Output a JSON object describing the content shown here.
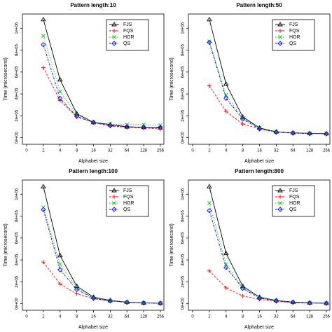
{
  "chart_data": [
    {
      "type": "line",
      "title": "Pattern length:10",
      "x_label": "Alphabet size",
      "y_label": "Time (microsecond)",
      "categories": [
        "0",
        "2",
        "4",
        "8",
        "16",
        "32",
        "64",
        "128",
        "256"
      ],
      "ylim": [
        -60000,
        1130000
      ],
      "yticks": [
        {
          "value": 0,
          "label": "0e+00"
        },
        {
          "value": 200000,
          "label": "2e+05"
        },
        {
          "value": 400000,
          "label": "4e+05"
        },
        {
          "value": 600000,
          "label": "6e+05"
        },
        {
          "value": 800000,
          "label": "8e+05"
        },
        {
          "value": 1000000,
          "label": "1e+06"
        }
      ],
      "series": [
        {
          "name": "FJS",
          "color": "#000000",
          "values": [
            null,
            1080000,
            530000,
            220000,
            140000,
            120000,
            100000,
            95000,
            90000
          ]
        },
        {
          "name": "FQS",
          "color": "#ff0000",
          "values": [
            null,
            640000,
            340000,
            190000,
            140000,
            105000,
            95000,
            90000,
            80000
          ]
        },
        {
          "name": "HOR",
          "color": "#00cd00",
          "values": [
            null,
            930000,
            420000,
            210000,
            140000,
            125000,
            120000,
            120000,
            115000
          ]
        },
        {
          "name": "QS",
          "color": "#0000ff",
          "values": [
            null,
            850000,
            360000,
            195000,
            140000,
            110000,
            100000,
            95000,
            95000
          ]
        }
      ]
    },
    {
      "type": "line",
      "title": "Pattern length:50",
      "x_label": "Alphabet size",
      "y_label": "Time (microsecond)",
      "categories": [
        "0",
        "2",
        "4",
        "8",
        "16",
        "32",
        "64",
        "128",
        "256"
      ],
      "ylim": [
        -60000,
        1130000
      ],
      "yticks": [
        {
          "value": 0,
          "label": "0e+00"
        },
        {
          "value": 200000,
          "label": "2e+05"
        },
        {
          "value": 400000,
          "label": "4e+05"
        },
        {
          "value": 600000,
          "label": "6e+05"
        },
        {
          "value": 800000,
          "label": "8e+05"
        },
        {
          "value": 1000000,
          "label": "1e+06"
        }
      ],
      "series": [
        {
          "name": "FJS",
          "color": "#000000",
          "values": [
            null,
            1080000,
            490000,
            190000,
            90000,
            55000,
            45000,
            40000,
            38000
          ]
        },
        {
          "name": "FQS",
          "color": "#ff0000",
          "values": [
            null,
            475000,
            240000,
            125000,
            80000,
            55000,
            45000,
            40000,
            38000
          ]
        },
        {
          "name": "HOR",
          "color": "#00cd00",
          "values": [
            null,
            880000,
            390000,
            175000,
            90000,
            55000,
            45000,
            40000,
            38000
          ]
        },
        {
          "name": "QS",
          "color": "#0000ff",
          "values": [
            null,
            870000,
            360000,
            170000,
            80000,
            50000,
            42000,
            38000,
            36000
          ]
        }
      ]
    },
    {
      "type": "line",
      "title": "Pattern length:100",
      "x_label": "Alphabet size",
      "y_label": "Time (microsecond)",
      "categories": [
        "0",
        "2",
        "4",
        "8",
        "16",
        "32",
        "64",
        "128",
        "256"
      ],
      "ylim": [
        -60000,
        1130000
      ],
      "yticks": [
        {
          "value": 0,
          "label": "0e+00"
        },
        {
          "value": 200000,
          "label": "2e+05"
        },
        {
          "value": 400000,
          "label": "4e+05"
        },
        {
          "value": 600000,
          "label": "6e+05"
        },
        {
          "value": 800000,
          "label": "8e+05"
        },
        {
          "value": 1000000,
          "label": "1e+06"
        }
      ],
      "series": [
        {
          "name": "FJS",
          "color": "#000000",
          "values": [
            null,
            1070000,
            440000,
            160000,
            60000,
            30000,
            15000,
            8000,
            5000
          ]
        },
        {
          "name": "FQS",
          "color": "#ff0000",
          "values": [
            null,
            380000,
            180000,
            90000,
            45000,
            25000,
            12000,
            7000,
            4000
          ]
        },
        {
          "name": "HOR",
          "color": "#00cd00",
          "values": [
            null,
            880000,
            360000,
            145000,
            55000,
            28000,
            14000,
            8000,
            5000
          ]
        },
        {
          "name": "QS",
          "color": "#0000ff",
          "values": [
            null,
            860000,
            310000,
            130000,
            50000,
            26000,
            13000,
            7000,
            4000
          ]
        }
      ]
    },
    {
      "type": "line",
      "title": "Pattern length:800",
      "x_label": "Alphabet size",
      "y_label": "Time (microsecond)",
      "categories": [
        "0",
        "2",
        "4",
        "8",
        "16",
        "32",
        "64",
        "128",
        "256"
      ],
      "ylim": [
        -60000,
        1130000
      ],
      "yticks": [
        {
          "value": 0,
          "label": "0e+00"
        },
        {
          "value": 200000,
          "label": "2e+05"
        },
        {
          "value": 400000,
          "label": "4e+05"
        },
        {
          "value": 600000,
          "label": "6e+05"
        },
        {
          "value": 800000,
          "label": "8e+05"
        },
        {
          "value": 1000000,
          "label": "1e+06"
        }
      ],
      "series": [
        {
          "name": "FJS",
          "color": "#000000",
          "values": [
            null,
            1070000,
            460000,
            160000,
            60000,
            30000,
            15000,
            8000,
            5000
          ]
        },
        {
          "name": "FQS",
          "color": "#ff0000",
          "values": [
            null,
            300000,
            145000,
            70000,
            40000,
            20000,
            10000,
            6000,
            4000
          ]
        },
        {
          "name": "HOR",
          "color": "#00cd00",
          "values": [
            null,
            920000,
            360000,
            145000,
            55000,
            28000,
            14000,
            8000,
            5000
          ]
        },
        {
          "name": "QS",
          "color": "#0000ff",
          "values": [
            null,
            850000,
            330000,
            140000,
            50000,
            26000,
            13000,
            7000,
            4000
          ]
        }
      ]
    }
  ]
}
